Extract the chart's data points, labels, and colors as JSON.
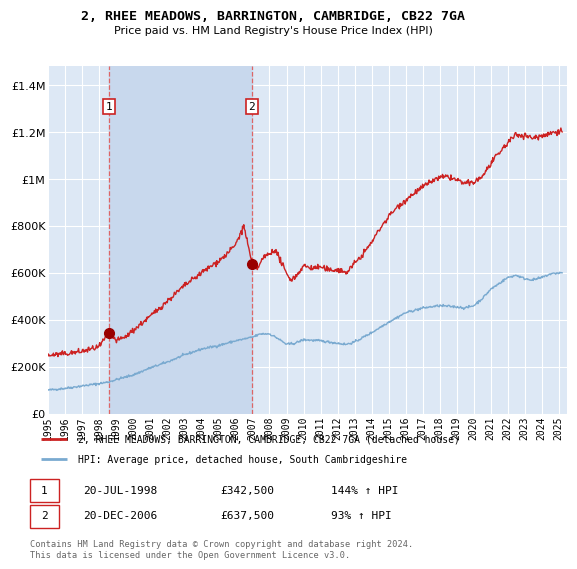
{
  "title": "2, RHEE MEADOWS, BARRINGTON, CAMBRIDGE, CB22 7GA",
  "subtitle": "Price paid vs. HM Land Registry's House Price Index (HPI)",
  "ylabel_ticks": [
    "£0",
    "£200K",
    "£400K",
    "£600K",
    "£800K",
    "£1M",
    "£1.2M",
    "£1.4M"
  ],
  "ytick_values": [
    0,
    200000,
    400000,
    600000,
    800000,
    1000000,
    1200000,
    1400000
  ],
  "ylim": [
    0,
    1480000
  ],
  "xlim_start": 1995.0,
  "xlim_end": 2025.5,
  "background_color": "#ffffff",
  "plot_bg_color": "#dde8f5",
  "grid_color": "#ffffff",
  "shade_color": "#c8d8ed",
  "red_line_color": "#cc2222",
  "blue_line_color": "#7aaad0",
  "dashed_line_color": "#dd6666",
  "marker1_x": 1998.55,
  "marker1_y": 342500,
  "marker1_label": "1",
  "marker2_x": 2006.97,
  "marker2_y": 637500,
  "marker2_label": "2",
  "annotation1_date": "20-JUL-1998",
  "annotation1_price": "£342,500",
  "annotation1_hpi": "144% ↑ HPI",
  "annotation2_date": "20-DEC-2006",
  "annotation2_price": "£637,500",
  "annotation2_hpi": "93% ↑ HPI",
  "legend_line1": "2, RHEE MEADOWS, BARRINGTON, CAMBRIDGE, CB22 7GA (detached house)",
  "legend_line2": "HPI: Average price, detached house, South Cambridgeshire",
  "footer": "Contains HM Land Registry data © Crown copyright and database right 2024.\nThis data is licensed under the Open Government Licence v3.0.",
  "xtick_years": [
    1995,
    1996,
    1997,
    1998,
    1999,
    2000,
    2001,
    2002,
    2003,
    2004,
    2005,
    2006,
    2007,
    2008,
    2009,
    2010,
    2011,
    2012,
    2013,
    2014,
    2015,
    2016,
    2017,
    2018,
    2019,
    2020,
    2021,
    2022,
    2023,
    2024,
    2025
  ]
}
